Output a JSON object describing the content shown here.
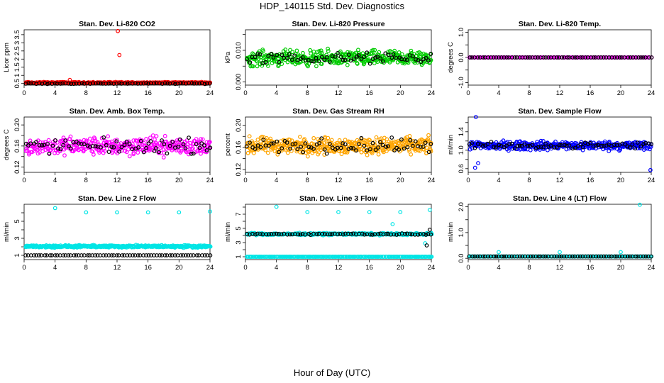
{
  "page": {
    "title": "HDP_140115  Std. Dev. Diagnostics",
    "xlabel": "Hour of Day (UTC)"
  },
  "chart_data": [
    {
      "type": "scatter",
      "title": "Stan. Dev. Li-820 CO2",
      "ylabel": "Licor ppm",
      "xlim": [
        0,
        24
      ],
      "ylim": [
        0.4,
        3.8
      ],
      "xticks": [
        0,
        4,
        8,
        12,
        16,
        20,
        24
      ],
      "yticks": [
        0.5,
        1.0,
        1.5,
        2.0,
        2.5,
        3.0,
        3.5
      ],
      "series": [
        {
          "name": "line-a",
          "color": "#ff0000",
          "base": 0.55,
          "spread": 0.06,
          "n": 300,
          "outliers": [
            [
              5.9,
              0.72
            ],
            [
              12.1,
              3.72
            ],
            [
              12.3,
              2.25
            ]
          ]
        },
        {
          "name": "line-b",
          "color": "#000000",
          "base": 0.5,
          "spread": 0.04,
          "n": 70,
          "outliers": []
        }
      ]
    },
    {
      "type": "scatter",
      "title": "Stan. Dev. Li-820 Pressure",
      "ylabel": "kPa",
      "xlim": [
        0,
        24
      ],
      "ylim": [
        -0.001,
        0.0165
      ],
      "xticks": [
        0,
        4,
        8,
        12,
        16,
        20,
        24
      ],
      "yticks": [
        0.0,
        0.005,
        0.01,
        0.015
      ],
      "yticklabels": [
        "0.000",
        "",
        "0.010",
        ""
      ],
      "series": [
        {
          "name": "line-a",
          "color": "#00cc00",
          "base": 0.0075,
          "spread": 0.0035,
          "n": 400,
          "outliers": []
        },
        {
          "name": "line-b",
          "color": "#000000",
          "base": 0.0075,
          "spread": 0.0025,
          "n": 70,
          "outliers": []
        }
      ]
    },
    {
      "type": "scatter",
      "title": "Stan. Dev. Li-820 Temp.",
      "ylabel": "degrees C",
      "xlim": [
        0,
        24
      ],
      "ylim": [
        -1.1,
        1.1
      ],
      "xticks": [
        0,
        4,
        8,
        12,
        16,
        20,
        24
      ],
      "yticks": [
        -1.0,
        -0.5,
        0.0,
        0.5,
        1.0
      ],
      "yticklabels": [
        "-1.0",
        "",
        "0.0",
        "",
        "1.0"
      ],
      "series": [
        {
          "name": "line-a",
          "color": "#ff00ff",
          "base": 0.0,
          "spread": 0.0,
          "n": 140,
          "outliers": []
        },
        {
          "name": "line-b",
          "color": "#000000",
          "base": 0.0,
          "spread": 0.0,
          "n": 70,
          "outliers": []
        }
      ]
    },
    {
      "type": "scatter",
      "title": "Stan. Dev. Amb. Box Temp.",
      "ylabel": "degrees C",
      "xlim": [
        0,
        24
      ],
      "ylim": [
        0.11,
        0.215
      ],
      "xticks": [
        0,
        4,
        8,
        12,
        16,
        20,
        24
      ],
      "yticks": [
        0.12,
        0.14,
        0.16,
        0.18,
        0.2
      ],
      "yticklabels": [
        "0.12",
        "",
        "0.16",
        "",
        "0.20"
      ],
      "series": [
        {
          "name": "line-a",
          "color": "#ff00ff",
          "base": 0.16,
          "spread": 0.025,
          "n": 380,
          "outliers": []
        },
        {
          "name": "line-b",
          "color": "#000000",
          "base": 0.16,
          "spread": 0.02,
          "n": 70,
          "outliers": []
        }
      ]
    },
    {
      "type": "scatter",
      "title": "Stan. Dev. Gas Stream RH",
      "ylabel": "percent",
      "xlim": [
        0,
        24
      ],
      "ylim": [
        0.115,
        0.215
      ],
      "xticks": [
        0,
        4,
        8,
        12,
        16,
        20,
        24
      ],
      "yticks": [
        0.12,
        0.14,
        0.16,
        0.18,
        0.2
      ],
      "yticklabels": [
        "0.12",
        "",
        "0.16",
        "",
        "0.20"
      ],
      "series": [
        {
          "name": "line-a",
          "color": "#ffa500",
          "base": 0.163,
          "spread": 0.022,
          "n": 420,
          "outliers": []
        },
        {
          "name": "line-b",
          "color": "#000000",
          "base": 0.163,
          "spread": 0.018,
          "n": 70,
          "outliers": []
        }
      ]
    },
    {
      "type": "scatter",
      "title": "Stan. Dev. Sample Flow",
      "ylabel": "ml/min",
      "xlim": [
        0,
        24
      ],
      "ylim": [
        0.52,
        1.72
      ],
      "xticks": [
        0,
        4,
        8,
        12,
        16,
        20,
        24
      ],
      "yticks": [
        0.6,
        0.8,
        1.0,
        1.2,
        1.4,
        1.6
      ],
      "yticklabels": [
        "0.6",
        "",
        "1.0",
        "",
        "1.4",
        ""
      ],
      "series": [
        {
          "name": "line-a",
          "color": "#0000ff",
          "base": 1.1,
          "spread": 0.14,
          "n": 380,
          "outliers": [
            [
              0.9,
              0.62
            ],
            [
              1.3,
              0.72
            ],
            [
              23.9,
              0.57
            ],
            [
              1.0,
              1.72
            ]
          ]
        },
        {
          "name": "line-b",
          "color": "#000000",
          "base": 1.1,
          "spread": 0.1,
          "n": 70,
          "outliers": []
        }
      ]
    },
    {
      "type": "scatter",
      "title": "Stan. Dev. Line 2 Flow",
      "ylabel": "ml/min",
      "xlim": [
        0,
        24
      ],
      "ylim": [
        0.5,
        7.0
      ],
      "xticks": [
        0,
        4,
        8,
        12,
        16,
        20,
        24
      ],
      "yticks": [
        1,
        2,
        3,
        4,
        5,
        6
      ],
      "yticklabels": [
        "1",
        "",
        "3",
        "",
        "5",
        ""
      ],
      "series": [
        {
          "name": "line-a",
          "color": "#00e5e5",
          "base": 2.05,
          "spread": 0.2,
          "n": 420,
          "outliers": [
            [
              4.0,
              6.55
            ],
            [
              8.0,
              6.05
            ],
            [
              12.0,
              6.05
            ],
            [
              16.0,
              6.05
            ],
            [
              20.0,
              6.05
            ],
            [
              24.0,
              6.15
            ]
          ]
        },
        {
          "name": "line-b",
          "color": "#000000",
          "base": 1.0,
          "spread": 0.0,
          "n": 70,
          "outliers": []
        }
      ]
    },
    {
      "type": "scatter",
      "title": "Stan. Dev. Line 3 Flow",
      "ylabel": "ml/min",
      "xlim": [
        0,
        24
      ],
      "ylim": [
        0.6,
        8.4
      ],
      "xticks": [
        0,
        4,
        8,
        12,
        16,
        20,
        24
      ],
      "yticks": [
        1,
        2,
        3,
        4,
        5,
        6,
        7,
        8
      ],
      "yticklabels": [
        "1",
        "",
        "3",
        "",
        "5",
        "",
        "7",
        ""
      ],
      "series": [
        {
          "name": "line-a",
          "color": "#00e5e5",
          "base": 4.2,
          "spread": 0.2,
          "n": 320,
          "outliers": [
            [
              4.0,
              8.05
            ],
            [
              8.0,
              7.3
            ],
            [
              12.0,
              7.3
            ],
            [
              16.0,
              7.3
            ],
            [
              20.0,
              7.3
            ],
            [
              23.8,
              7.6
            ],
            [
              19.0,
              5.6
            ],
            [
              23.2,
              2.9
            ]
          ]
        },
        {
          "name": "line-a-base",
          "color": "#00e5e5",
          "base": 1.0,
          "spread": 0.0,
          "n": 260,
          "outliers": []
        },
        {
          "name": "line-b",
          "color": "#000000",
          "base": 4.2,
          "spread": 0.15,
          "n": 70,
          "outliers": [
            [
              23.4,
              2.6
            ],
            [
              23.8,
              4.8
            ]
          ]
        }
      ]
    },
    {
      "type": "scatter",
      "title": "Stan. Dev. Line 4 (LT) Flow",
      "ylabel": "ml/min",
      "xlim": [
        0,
        24
      ],
      "ylim": [
        -0.05,
        2.1
      ],
      "xticks": [
        0,
        4,
        8,
        12,
        16,
        20,
        24
      ],
      "yticks": [
        0.0,
        0.5,
        1.0,
        1.5,
        2.0
      ],
      "yticklabels": [
        "0.0",
        "",
        "1.0",
        "",
        "2.0"
      ],
      "series": [
        {
          "name": "line-a",
          "color": "#00e5e5",
          "base": 0.07,
          "spread": 0.0,
          "n": 200,
          "outliers": [
            [
              0.2,
              0.08
            ],
            [
              4.0,
              0.24
            ],
            [
              12.0,
              0.24
            ],
            [
              20.0,
              0.24
            ],
            [
              22.5,
              2.08
            ]
          ]
        },
        {
          "name": "line-b",
          "color": "#000000",
          "base": 0.07,
          "spread": 0.0,
          "n": 70,
          "outliers": []
        }
      ]
    }
  ]
}
